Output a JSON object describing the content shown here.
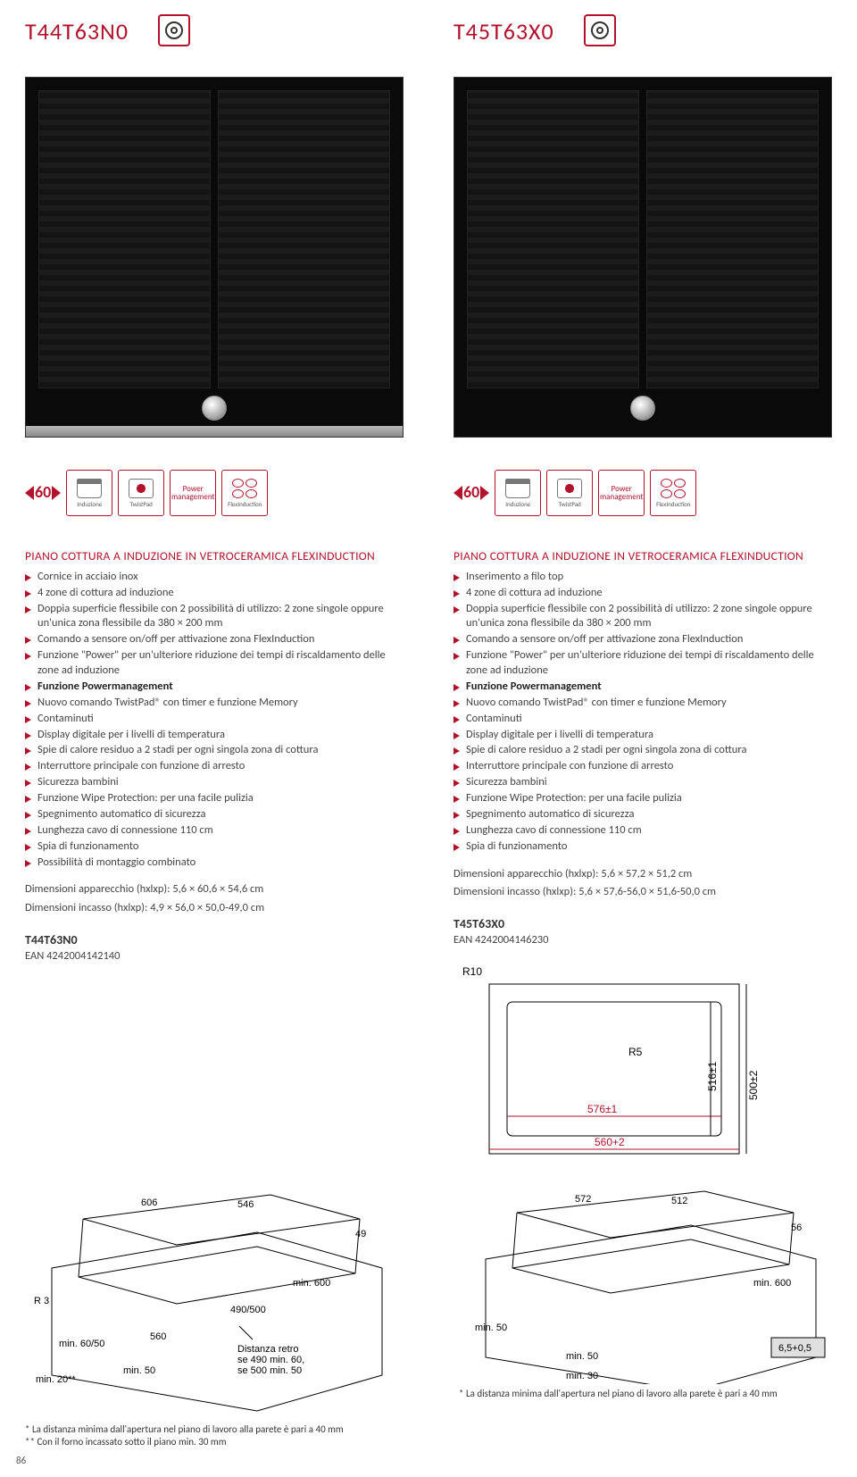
{
  "accent": "#b2122b",
  "left": {
    "model": "T44T63N0",
    "icons": [
      {
        "key": "induzione",
        "label": "Induzione"
      },
      {
        "key": "twistpad",
        "label": "TwistPad"
      },
      {
        "key": "power",
        "label": "Power management"
      },
      {
        "key": "flex",
        "label": "FlexInduction"
      }
    ],
    "width_label": "60",
    "section_title": "PIANO COTTURA A INDUZIONE IN VETROCERAMICA FLEXINDUCTION",
    "features": [
      "Cornice in acciaio inox",
      "4 zone di cottura ad induzione",
      "Doppia superficie flessibile con 2 possibilità di utilizzo: 2 zone singole oppure un'unica zona flessibile da 380 × 200 mm",
      "Comando a sensore on/off per attivazione zona FlexInduction",
      "Funzione \"Power\" per un'ulteriore riduzione dei tempi di riscaldamento delle zone ad induzione",
      "Funzione Powermanagement",
      "Nuovo comando TwistPad® con timer e funzione Memory",
      "Contaminuti",
      "Display digitale per i livelli di temperatura",
      "Spie di calore residuo a 2 stadi per ogni singola zona di cottura",
      "Interruttore principale con funzione di arresto",
      "Sicurezza bambini",
      "Funzione Wipe Protection: per una facile pulizia",
      "Spegnimento automatico di sicurezza",
      "Lunghezza cavo di connessione 110 cm",
      "Spia di funzionamento",
      "Possibilità di montaggio combinato"
    ],
    "bold_idx": [
      5
    ],
    "dim1": "Dimensioni apparecchio (hxlxp): 5,6 × 60,6 × 54,6 cm",
    "dim2": "Dimensioni incasso (hxlxp): 4,9 × 56,0 × 50,0-49,0 cm",
    "model_code": "T44T63N0",
    "ean": "EAN 4242004142140",
    "tech": {
      "d_606": "606",
      "d_546": "546",
      "d_49": "49",
      "d_R3": "R 3",
      "d_min600": "min. 600",
      "d_490_500": "490/500",
      "d_560": "560",
      "d_min6050": "min. 60/50",
      "d_min50": "min. 50",
      "d_min20": "min. 20**",
      "retro1": "Distanza retro",
      "retro2": "se 490 min. 60,",
      "retro3": "se 500 min. 50",
      "note1": "*  La distanza minima dall'apertura nel piano di lavoro alla parete è pari a 40 mm",
      "note2": "** Con il forno incassato sotto il piano min. 30 mm"
    }
  },
  "right": {
    "model": "T45T63X0",
    "icons": [
      {
        "key": "induzione",
        "label": "Induzione"
      },
      {
        "key": "twistpad",
        "label": "TwistPad"
      },
      {
        "key": "power",
        "label": "Power management"
      },
      {
        "key": "flex",
        "label": "FlexInduction"
      }
    ],
    "width_label": "60",
    "section_title": "PIANO COTTURA A INDUZIONE IN VETROCERAMICA FLEXINDUCTION",
    "features": [
      "Inserimento a filo top",
      "4 zone di cottura ad induzione",
      "Doppia superficie flessibile con 2 possibilità di utilizzo: 2 zone singole oppure un'unica zona flessibile da 380 × 200 mm",
      "Comando a sensore on/off per attivazione zona FlexInduction",
      "Funzione \"Power\" per un'ulteriore riduzione dei tempi di riscaldamento delle zone ad induzione",
      "Funzione Powermanagement",
      "Nuovo comando TwistPad® con timer e funzione Memory",
      "Contaminuti",
      "Display digitale per i livelli di temperatura",
      "Spie di calore residuo a 2 stadi per ogni singola zona di cottura",
      "Interruttore principale con funzione di arresto",
      "Sicurezza bambini",
      "Funzione Wipe Protection: per una facile pulizia",
      "Spegnimento automatico di sicurezza",
      "Lunghezza cavo di connessione 110 cm",
      "Spia di funzionamento"
    ],
    "bold_idx": [
      5
    ],
    "dim1": "Dimensioni apparecchio (hxlxp): 5,6 × 57,2 × 51,2 cm",
    "dim2": "Dimensioni incasso (hxlxp): 5,6 × 57,6-56,0 × 51,6-50,0 cm",
    "model_code": "T45T63X0",
    "ean": "EAN 4242004146230",
    "tech_top": {
      "R10": "R10",
      "R5": "R5",
      "d576": "576±1",
      "d560": "560+2",
      "d516": "516±1",
      "d500": "500±2"
    },
    "tech": {
      "d_572": "572",
      "d_512": "512",
      "d_56": "56",
      "d_min600": "min. 600",
      "d_min50l": "min. 50",
      "d_min50r": "min. 50",
      "d_min30": "min. 30",
      "d_65": "6,5+0,5",
      "note1": "*  La distanza minima dall'apertura nel piano di lavoro alla parete è pari a 40 mm"
    }
  },
  "page_number": "86"
}
